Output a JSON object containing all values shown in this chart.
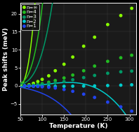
{
  "title": "",
  "xlabel": "Temperature (K)",
  "ylabel": "Peak shifts (meV)",
  "xlim": [
    50,
    315
  ],
  "ylim": [
    -8,
    23
  ],
  "xticks": [
    50,
    100,
    150,
    200,
    250,
    300
  ],
  "yticks": [
    -5,
    0,
    5,
    10,
    15,
    20
  ],
  "background_color": "#000000",
  "plot_bg_color": "#1a1a1a",
  "series": [
    {
      "label": "n=∞",
      "color": "#88ff00",
      "data_x": [
        60,
        70,
        80,
        90,
        100,
        115,
        130,
        150,
        170,
        195,
        220,
        250,
        280,
        305
      ],
      "data_y": [
        0.0,
        0.3,
        0.7,
        1.2,
        1.8,
        2.8,
        4.2,
        6.0,
        8.0,
        11.0,
        13.5,
        17.0,
        19.5,
        21.5
      ],
      "fit_a": 0.000235,
      "fit_b": -0.025,
      "fit_c": 0.82,
      "fit_d": -8.0
    },
    {
      "label": "n=4",
      "color": "#22bb22",
      "data_x": [
        60,
        70,
        80,
        90,
        100,
        115,
        130,
        150,
        170,
        195,
        220,
        250,
        280,
        305
      ],
      "data_y": [
        0.0,
        0.1,
        0.2,
        0.4,
        0.6,
        1.0,
        1.5,
        2.2,
        3.0,
        4.2,
        5.5,
        6.8,
        7.8,
        8.5
      ],
      "fit_a": 8.2e-05,
      "fit_b": -0.0088,
      "fit_c": 0.31,
      "fit_d": -3.0
    },
    {
      "label": "n=3",
      "color": "#009966",
      "data_x": [
        60,
        70,
        80,
        90,
        100,
        115,
        130,
        150,
        170,
        195,
        220,
        250,
        280,
        305
      ],
      "data_y": [
        0.0,
        0.05,
        0.1,
        0.2,
        0.35,
        0.55,
        0.85,
        1.2,
        1.7,
        2.3,
        2.9,
        3.5,
        3.9,
        4.1
      ],
      "fit_a": 3.3e-05,
      "fit_b": -0.0035,
      "fit_c": 0.125,
      "fit_d": -1.2
    },
    {
      "label": "n=2",
      "color": "#00cccc",
      "data_x": [
        60,
        70,
        80,
        90,
        100,
        115,
        130,
        150,
        170,
        195,
        220,
        250,
        280,
        305
      ],
      "data_y": [
        0.0,
        -0.05,
        -0.1,
        -0.12,
        -0.15,
        -0.15,
        -0.15,
        -0.12,
        -0.08,
        -0.05,
        0.0,
        0.1,
        0.2,
        0.3
      ],
      "fit_a": -1.8e-06,
      "fit_b": 0.00058,
      "fit_c": -0.047,
      "fit_d": 1.0
    },
    {
      "label": "n=1",
      "color": "#2244ee",
      "data_x": [
        60,
        70,
        80,
        90,
        100,
        115,
        130,
        150,
        170,
        195,
        220,
        250,
        280,
        305
      ],
      "data_y": [
        0.0,
        -0.05,
        -0.1,
        -0.15,
        -0.25,
        -0.4,
        -0.6,
        -1.0,
        -1.5,
        -2.3,
        -3.2,
        -4.5,
        -5.8,
        -7.0
      ],
      "fit_a": -2.1e-06,
      "fit_b": 0.00019,
      "fit_c": -0.026,
      "fit_d": 0.72
    }
  ],
  "legend_fontsize": 5.0,
  "axis_fontsize": 6.5,
  "tick_fontsize": 5.0
}
